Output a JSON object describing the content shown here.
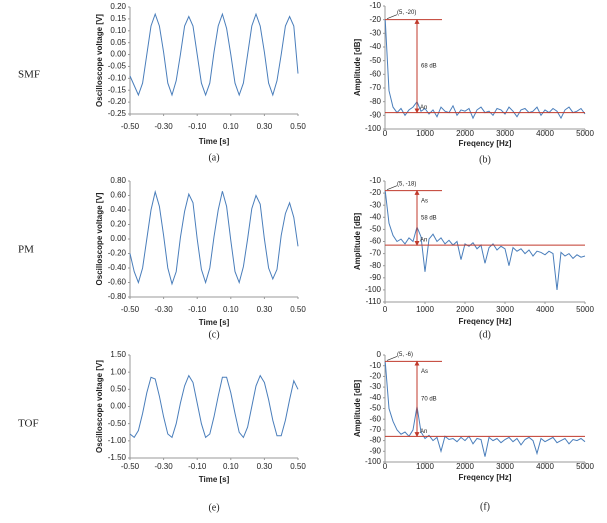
{
  "rows": [
    "SMF",
    "PM",
    "TOF"
  ],
  "chart_data": [
    {
      "type": "line",
      "caption": "(a)",
      "xlabel": "Time [s]",
      "ylabel": "Oscilloscope voltage [V]",
      "color": "#4a7ebb",
      "xlim": [
        -0.5,
        0.5
      ],
      "xticks": [
        {
          "value": -0.5,
          "label": "-0.50"
        },
        {
          "value": -0.3,
          "label": "-0.30"
        },
        {
          "value": -0.1,
          "label": "-0.10"
        },
        {
          "value": 0.1,
          "label": "0.10"
        },
        {
          "value": 0.3,
          "label": "0.30"
        },
        {
          "value": 0.5,
          "label": "0.50"
        }
      ],
      "ylim": [
        -0.25,
        0.2
      ],
      "yticks": [
        {
          "value": 0.2,
          "label": "0.20"
        },
        0.15,
        {
          "value": 0.1,
          "label": "0.10"
        },
        0.05,
        {
          "value": 0,
          "label": "0.00"
        },
        -0.05,
        {
          "value": -0.1,
          "label": "-0.10"
        },
        -0.15,
        {
          "value": -0.2,
          "label": "-0.20"
        },
        -0.25
      ],
      "x": [
        -0.5,
        -0.475,
        -0.45,
        -0.425,
        -0.4,
        -0.375,
        -0.35,
        -0.325,
        -0.3,
        -0.275,
        -0.25,
        -0.225,
        -0.2,
        -0.175,
        -0.15,
        -0.125,
        -0.1,
        -0.075,
        -0.05,
        -0.025,
        0,
        0.025,
        0.05,
        0.075,
        0.1,
        0.125,
        0.15,
        0.175,
        0.2,
        0.225,
        0.25,
        0.275,
        0.3,
        0.325,
        0.35,
        0.375,
        0.4,
        0.425,
        0.45,
        0.475,
        0.5
      ],
      "values": [
        -0.09,
        -0.13,
        -0.17,
        -0.12,
        0,
        0.12,
        0.17,
        0.12,
        0.01,
        -0.12,
        -0.17,
        -0.11,
        0,
        0.12,
        0.16,
        0.12,
        0,
        -0.12,
        -0.17,
        -0.12,
        0.01,
        0.12,
        0.17,
        0.11,
        0,
        -0.12,
        -0.17,
        -0.12,
        0,
        0.12,
        0.17,
        0.12,
        0.01,
        -0.12,
        -0.17,
        -0.11,
        0,
        0.12,
        0.16,
        0.12,
        -0.08
      ]
    },
    {
      "type": "spectrum",
      "caption": "(b)",
      "xlabel": "Freqency [Hz]",
      "ylabel": "Amplitude [dB]",
      "color": "#4a7ebb",
      "xlim": [
        0,
        5000
      ],
      "xticks": [
        0,
        1000,
        2000,
        3000,
        4000,
        5000
      ],
      "ylim": [
        -100,
        -10
      ],
      "yticks": [
        -10,
        -20,
        -30,
        -40,
        -50,
        -60,
        -70,
        -80,
        -90,
        -100
      ],
      "x": [
        5,
        100,
        200,
        300,
        400,
        500,
        600,
        700,
        800,
        900,
        1000,
        1100,
        1200,
        1300,
        1400,
        1500,
        1600,
        1700,
        1800,
        1900,
        2000,
        2100,
        2200,
        2300,
        2400,
        2500,
        2600,
        2700,
        2800,
        2900,
        3000,
        3100,
        3200,
        3300,
        3400,
        3500,
        3600,
        3700,
        3800,
        3900,
        4000,
        4100,
        4200,
        4300,
        4400,
        4500,
        4600,
        4700,
        4800,
        4900,
        5000
      ],
      "values": [
        -20,
        -72,
        -84,
        -88,
        -85,
        -90,
        -86,
        -84,
        -80,
        -87,
        -85,
        -89,
        -86,
        -91,
        -84,
        -87,
        -88,
        -83,
        -90,
        -86,
        -87,
        -85,
        -92,
        -86,
        -84,
        -88,
        -87,
        -90,
        -85,
        -86,
        -89,
        -84,
        -87,
        -91,
        -86,
        -85,
        -88,
        -87,
        -84,
        -90,
        -86,
        -88,
        -85,
        -87,
        -92,
        -86,
        -84,
        -88,
        -87,
        -85,
        -89
      ],
      "peak_label": "(5, -20)",
      "gap_label": "68 dB",
      "noise_label": "An",
      "noise_level": -88,
      "marker_x": 800
    },
    {
      "type": "line",
      "caption": "(c)",
      "xlabel": "Time [s]",
      "ylabel": "Oscilloscope voltage [V]",
      "color": "#4a7ebb",
      "xlim": [
        -0.5,
        0.5
      ],
      "xticks": [
        {
          "value": -0.5,
          "label": "-0.50"
        },
        {
          "value": -0.3,
          "label": "-0.30"
        },
        {
          "value": -0.1,
          "label": "-0.10"
        },
        {
          "value": 0.1,
          "label": "0.10"
        },
        {
          "value": 0.3,
          "label": "0.30"
        },
        {
          "value": 0.5,
          "label": "0.50"
        }
      ],
      "ylim": [
        -0.8,
        0.8
      ],
      "yticks": [
        {
          "value": 0.8,
          "label": "0.80"
        },
        {
          "value": 0.6,
          "label": "0.60"
        },
        {
          "value": 0.4,
          "label": "0.40"
        },
        {
          "value": 0.2,
          "label": "0.20"
        },
        {
          "value": 0,
          "label": "0.00"
        },
        {
          "value": -0.2,
          "label": "-0.20"
        },
        {
          "value": -0.4,
          "label": "-0.40"
        },
        {
          "value": -0.6,
          "label": "-0.60"
        },
        {
          "value": -0.8,
          "label": "-0.80"
        }
      ],
      "x": [
        -0.5,
        -0.475,
        -0.45,
        -0.425,
        -0.4,
        -0.375,
        -0.35,
        -0.325,
        -0.3,
        -0.275,
        -0.25,
        -0.225,
        -0.2,
        -0.175,
        -0.15,
        -0.125,
        -0.1,
        -0.075,
        -0.05,
        -0.025,
        0,
        0.025,
        0.05,
        0.075,
        0.1,
        0.125,
        0.15,
        0.175,
        0.2,
        0.225,
        0.25,
        0.275,
        0.3,
        0.325,
        0.35,
        0.375,
        0.4,
        0.425,
        0.45,
        0.475,
        0.5
      ],
      "values": [
        -0.2,
        -0.45,
        -0.6,
        -0.4,
        0,
        0.4,
        0.65,
        0.45,
        0.05,
        -0.4,
        -0.62,
        -0.45,
        0.02,
        0.38,
        0.62,
        0.5,
        0,
        -0.42,
        -0.6,
        -0.4,
        0.03,
        0.4,
        0.66,
        0.45,
        -0.02,
        -0.45,
        -0.6,
        -0.38,
        0,
        0.42,
        0.6,
        0.48,
        0,
        -0.4,
        -0.55,
        -0.42,
        0.05,
        0.35,
        0.5,
        0.3,
        -0.1
      ]
    },
    {
      "type": "spectrum",
      "caption": "(d)",
      "xlabel": "Freqency [Hz]",
      "ylabel": "Amplitude [dB]",
      "color": "#4a7ebb",
      "xlim": [
        0,
        5000
      ],
      "xticks": [
        0,
        1000,
        2000,
        3000,
        4000,
        5000
      ],
      "ylim": [
        -110,
        -10
      ],
      "yticks": [
        -10,
        -20,
        -30,
        -40,
        -50,
        -60,
        -70,
        -80,
        -90,
        -100,
        -110
      ],
      "x": [
        5,
        100,
        200,
        300,
        400,
        500,
        600,
        700,
        800,
        900,
        1000,
        1100,
        1200,
        1300,
        1400,
        1500,
        1600,
        1700,
        1800,
        1900,
        2000,
        2100,
        2200,
        2300,
        2400,
        2500,
        2600,
        2700,
        2800,
        2900,
        3000,
        3100,
        3200,
        3300,
        3400,
        3500,
        3600,
        3700,
        3800,
        3900,
        4000,
        4100,
        4200,
        4300,
        4400,
        4500,
        4600,
        4700,
        4800,
        4900,
        5000
      ],
      "values": [
        -18,
        -45,
        -55,
        -60,
        -58,
        -62,
        -57,
        -60,
        -48,
        -56,
        -85,
        -58,
        -54,
        -60,
        -57,
        -62,
        -59,
        -63,
        -60,
        -75,
        -62,
        -64,
        -61,
        -66,
        -63,
        -78,
        -65,
        -62,
        -67,
        -64,
        -66,
        -80,
        -65,
        -68,
        -66,
        -70,
        -67,
        -72,
        -68,
        -69,
        -71,
        -68,
        -70,
        -100,
        -69,
        -72,
        -70,
        -74,
        -71,
        -73,
        -72
      ],
      "peak_label": "(5, -18)",
      "signal_label": "As",
      "gap_label": "58 dB",
      "noise_label": "An",
      "noise_level": -63,
      "marker_x": 800
    },
    {
      "type": "line",
      "caption": "(e)",
      "xlabel": "Time [s]",
      "ylabel": "Oscilloscope voltage [V]",
      "color": "#4a7ebb",
      "xlim": [
        -0.5,
        0.5
      ],
      "xticks": [
        {
          "value": -0.5,
          "label": "-0.50"
        },
        {
          "value": -0.3,
          "label": "-0.30"
        },
        {
          "value": -0.1,
          "label": "-0.10"
        },
        {
          "value": 0.1,
          "label": "0.10"
        },
        {
          "value": 0.3,
          "label": "0.30"
        },
        {
          "value": 0.5,
          "label": "0.50"
        }
      ],
      "ylim": [
        -1.5,
        1.5
      ],
      "yticks": [
        {
          "value": 1.5,
          "label": "1.50"
        },
        {
          "value": 1,
          "label": "1.00"
        },
        {
          "value": 0.5,
          "label": "0.50"
        },
        {
          "value": 0,
          "label": "0.00"
        },
        {
          "value": -0.5,
          "label": "-0.50"
        },
        {
          "value": -1,
          "label": "-1.00"
        },
        {
          "value": -1.5,
          "label": "-1.50"
        }
      ],
      "x": [
        -0.5,
        -0.475,
        -0.45,
        -0.425,
        -0.4,
        -0.375,
        -0.35,
        -0.325,
        -0.3,
        -0.275,
        -0.25,
        -0.225,
        -0.2,
        -0.175,
        -0.15,
        -0.125,
        -0.1,
        -0.075,
        -0.05,
        -0.025,
        0,
        0.025,
        0.05,
        0.075,
        0.1,
        0.125,
        0.15,
        0.175,
        0.2,
        0.225,
        0.25,
        0.275,
        0.3,
        0.325,
        0.35,
        0.375,
        0.4,
        0.425,
        0.45,
        0.475,
        0.5
      ],
      "values": [
        -0.8,
        -0.9,
        -0.7,
        -0.2,
        0.4,
        0.85,
        0.8,
        0.3,
        -0.3,
        -0.8,
        -0.9,
        -0.5,
        0.1,
        0.6,
        0.9,
        0.7,
        0.1,
        -0.5,
        -0.9,
        -0.8,
        -0.3,
        0.3,
        0.85,
        0.85,
        0.4,
        -0.2,
        -0.75,
        -0.9,
        -0.6,
        0,
        0.6,
        0.9,
        0.7,
        0.2,
        -0.4,
        -0.85,
        -0.85,
        -0.4,
        0.2,
        0.75,
        0.5
      ]
    },
    {
      "type": "spectrum",
      "caption": "(f)",
      "xlabel": "Freqency [Hz]",
      "ylabel": "Amplitude [dB]",
      "color": "#4a7ebb",
      "xlim": [
        0,
        5000
      ],
      "xticks": [
        0,
        1000,
        2000,
        3000,
        4000,
        5000
      ],
      "ylim": [
        -100,
        0
      ],
      "yticks": [
        0,
        -10,
        -20,
        -30,
        -40,
        -50,
        -60,
        -70,
        -80,
        -90,
        -100
      ],
      "x": [
        5,
        100,
        200,
        300,
        400,
        500,
        600,
        700,
        800,
        900,
        1000,
        1100,
        1200,
        1300,
        1400,
        1500,
        1600,
        1700,
        1800,
        1900,
        2000,
        2100,
        2200,
        2300,
        2400,
        2500,
        2600,
        2700,
        2800,
        2900,
        3000,
        3100,
        3200,
        3300,
        3400,
        3500,
        3600,
        3700,
        3800,
        3900,
        4000,
        4100,
        4200,
        4300,
        4400,
        4500,
        4600,
        4700,
        4800,
        4900,
        5000
      ],
      "values": [
        -6,
        -50,
        -62,
        -70,
        -74,
        -72,
        -76,
        -70,
        -48,
        -72,
        -78,
        -75,
        -80,
        -77,
        -90,
        -76,
        -79,
        -78,
        -81,
        -77,
        -80,
        -76,
        -83,
        -78,
        -79,
        -95,
        -77,
        -80,
        -78,
        -82,
        -79,
        -77,
        -81,
        -78,
        -84,
        -79,
        -77,
        -80,
        -92,
        -78,
        -81,
        -79,
        -77,
        -82,
        -80,
        -78,
        -83,
        -79,
        -80,
        -78,
        -81
      ],
      "peak_label": "(5, -6)",
      "signal_label": "As",
      "gap_label": "70 dB",
      "noise_label": "An",
      "noise_level": -76,
      "marker_x": 800
    }
  ]
}
